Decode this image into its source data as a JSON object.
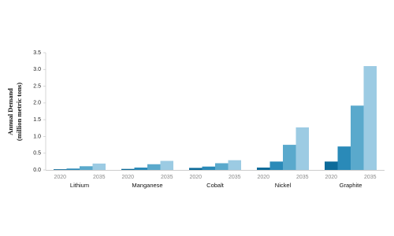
{
  "chart_data": {
    "type": "bar",
    "ylabel": [
      "Annual Demand",
      "(million metric tons)"
    ],
    "categories": [
      "Lithium",
      "Manganese",
      "Cobalt",
      "Nickel",
      "Graphite"
    ],
    "series": [
      {
        "name": "2020",
        "color": "#0d6b9a",
        "values": [
          0.02,
          0.03,
          0.06,
          0.07,
          0.25
        ]
      },
      {
        "color": "#2a8ab8",
        "values": [
          0.04,
          0.07,
          0.1,
          0.25,
          0.7
        ]
      },
      {
        "color": "#5aa9cc",
        "values": [
          0.11,
          0.17,
          0.2,
          0.75,
          1.92
        ]
      },
      {
        "name": "2035",
        "color": "#9ccbe3",
        "values": [
          0.19,
          0.27,
          0.29,
          1.27,
          3.1
        ]
      }
    ],
    "ylim": [
      0,
      3.5
    ],
    "yticks": [
      {
        "value": 0,
        "label": "0.0"
      },
      0.5,
      {
        "value": 1,
        "label": "1.0"
      },
      1.5,
      {
        "value": 2,
        "label": "2.0"
      },
      2.5,
      {
        "value": 3,
        "label": "3.0"
      },
      3.5
    ],
    "grid": false
  }
}
